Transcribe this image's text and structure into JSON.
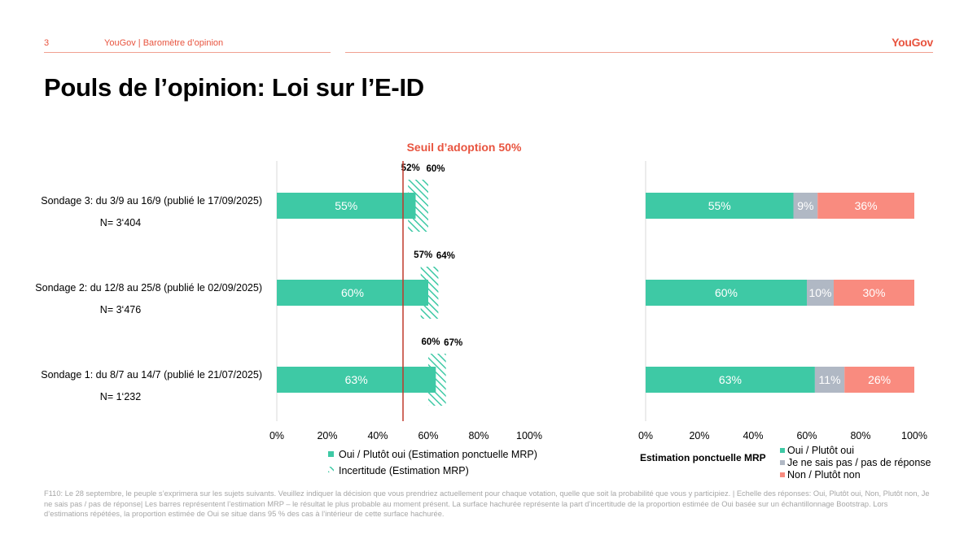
{
  "header": {
    "page_number": "3",
    "breadcrumb": "YouGov | Baromètre d’opinion",
    "logo": "YouGov"
  },
  "title": "Pouls de l’opinion: Loi sur l’E-ID",
  "footnote": "F110: Le 28 septembre, le peuple s’exprimera sur les sujets suivants. Veuillez indiquer la décision que vous prendriez actuellement pour chaque votation, quelle que soit la probabilité que vous y participiez. | Echelle des réponses: Oui, Plutôt oui, Non, Plutôt non, Je ne sais pas / pas de réponse| Les barres représentent l’estimation MRP – le résultat le plus probable au moment présent. La surface hachurée représente la part d’incertitude de la proportion estimée de Oui basée sur un échantillonnage Bootstrap. Lors d’estimations répétées, la proportion estimée de Oui se situe dans 95 % des cas à l’intérieur de cette surface hachurée.",
  "colors": {
    "oui": "#3ec9a5",
    "jsp": "#b0b8c4",
    "non": "#f98b7f",
    "threshold": "#c0392b",
    "accent": "#e8543f"
  },
  "chart_data": [
    {
      "type": "bar",
      "orientation": "horizontal",
      "annotation": "Seuil d’adoption 50%",
      "threshold": 50,
      "xlim": [
        0,
        100
      ],
      "x_ticks": [
        "0%",
        "20%",
        "40%",
        "60%",
        "80%",
        "100%"
      ],
      "categories": [
        {
          "label": "Sondage 3: du 3/9 au 16/9 (publié le 17/09/2025)",
          "n": "N= 3‘404"
        },
        {
          "label": "Sondage 2: du 12/8 au 25/8 (publié le 02/09/2025)",
          "n": "N= 3‘476"
        },
        {
          "label": "Sondage 1: du 8/7 au 14/7 (publié le 21/07/2025)",
          "n": "N= 1‘232"
        }
      ],
      "series": [
        {
          "name": "Oui / Plutôt oui (Estimation ponctuelle MRP)",
          "values": [
            55,
            60,
            63
          ]
        },
        {
          "name": "Incertitude (Estimation MRP)",
          "low": [
            52,
            57,
            60
          ],
          "high": [
            60,
            64,
            67
          ]
        }
      ],
      "legend_position": "bottom"
    },
    {
      "type": "bar",
      "orientation": "horizontal",
      "stacked": true,
      "xlim": [
        0,
        100
      ],
      "x_ticks": [
        "0%",
        "20%",
        "40%",
        "60%",
        "80%",
        "100%"
      ],
      "legend_title": "Estimation ponctuelle MRP",
      "series": [
        {
          "name": "Oui / Plutôt oui",
          "values": [
            55,
            60,
            63
          ]
        },
        {
          "name": "Je ne sais pas / pas de réponse",
          "values": [
            9,
            10,
            11
          ]
        },
        {
          "name": "Non / Plutôt non",
          "values": [
            36,
            30,
            26
          ]
        }
      ],
      "legend_position": "bottom"
    }
  ]
}
